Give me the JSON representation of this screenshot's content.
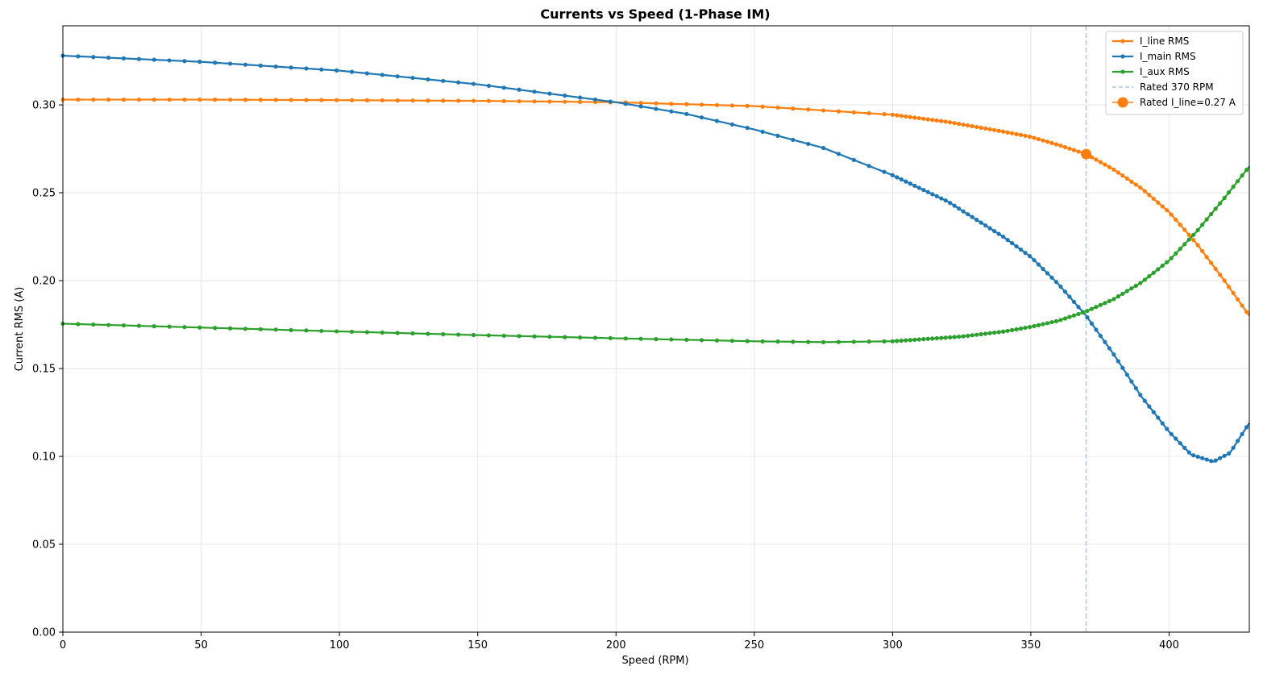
{
  "chart_data": {
    "type": "line",
    "title": "Currents vs Speed  (1-Phase IM)",
    "xlabel": "Speed (RPM)",
    "ylabel": "Current RMS (A)",
    "xlim": [
      0,
      429
    ],
    "ylim": [
      0,
      0.345
    ],
    "xticks": [
      "0",
      "50",
      "100",
      "150",
      "200",
      "250",
      "300",
      "350",
      "400"
    ],
    "yticks": [
      "0.00",
      "0.05",
      "0.10",
      "0.15",
      "0.20",
      "0.25",
      "0.30"
    ],
    "grid": true,
    "legend_position": "top-right",
    "series": [
      {
        "name": "I_line RMS",
        "color": "#ff7f0e",
        "x": [
          0,
          50,
          100,
          150,
          200,
          250,
          300,
          320,
          340,
          350,
          360,
          370,
          380,
          390,
          400,
          410,
          420,
          429
        ],
        "y": [
          0.303,
          0.303,
          0.3027,
          0.3023,
          0.3015,
          0.2993,
          0.2944,
          0.2903,
          0.2848,
          0.2818,
          0.2772,
          0.272,
          0.2632,
          0.2525,
          0.239,
          0.221,
          0.2,
          0.18
        ]
      },
      {
        "name": "I_main RMS",
        "color": "#1f77b4",
        "x": [
          0,
          50,
          100,
          150,
          200,
          225,
          250,
          275,
          300,
          320,
          340,
          350,
          360,
          370,
          380,
          390,
          400,
          408,
          416,
          422,
          429
        ],
        "y": [
          0.328,
          0.3245,
          0.3195,
          0.3117,
          0.3015,
          0.295,
          0.286,
          0.2755,
          0.26,
          0.245,
          0.225,
          0.2135,
          0.198,
          0.18,
          0.158,
          0.134,
          0.114,
          0.101,
          0.097,
          0.102,
          0.119
        ]
      },
      {
        "name": "I_aux RMS",
        "color": "#2ca02c",
        "x": [
          0,
          50,
          100,
          150,
          200,
          250,
          275,
          300,
          325,
          340,
          350,
          360,
          370,
          380,
          390,
          400,
          410,
          420,
          429
        ],
        "y": [
          0.1755,
          0.1733,
          0.1711,
          0.169,
          0.1672,
          0.1655,
          0.165,
          0.1655,
          0.1682,
          0.171,
          0.1737,
          0.1772,
          0.1825,
          0.1895,
          0.199,
          0.2115,
          0.228,
          0.247,
          0.265
        ]
      }
    ],
    "rated_speed": {
      "name": "Rated  370 RPM",
      "x": 370,
      "color": "#aec7e8"
    },
    "rated_point": {
      "name": "Rated  I_line=0.27 A",
      "x": 370,
      "y": 0.272,
      "color": "#ff7f0e"
    }
  }
}
